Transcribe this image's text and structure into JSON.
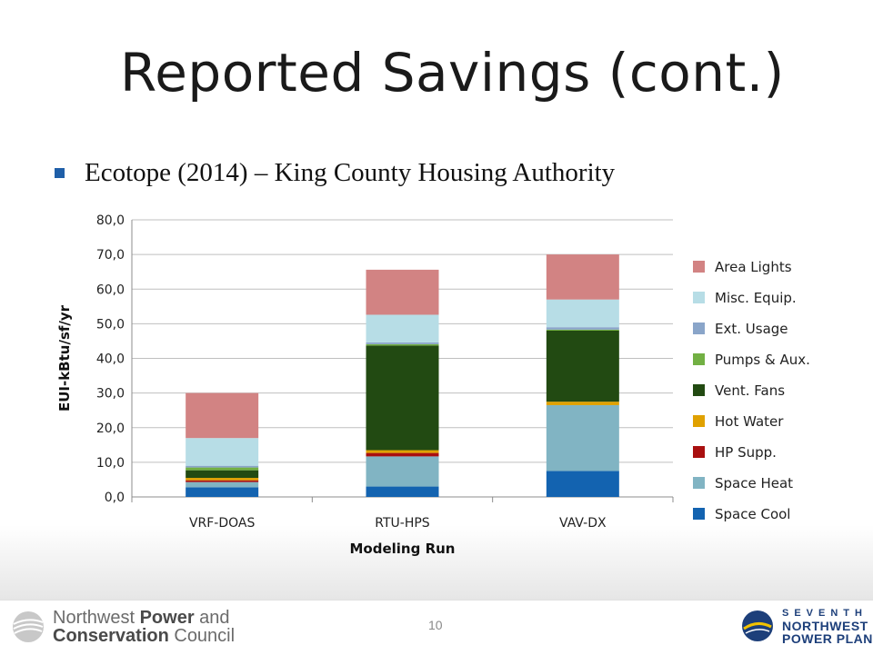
{
  "slide": {
    "title": "Reported Savings (cont.)",
    "bullet": "Ecotope (2014) – King County Housing Authority",
    "page_number": "10"
  },
  "footer": {
    "left_logo": {
      "line1_plain": "Northwest ",
      "line1_bold": "Power",
      "line1_tail": " and",
      "line2_bold": "Conservation",
      "line2_tail": " Council"
    },
    "right_logo": {
      "line1": "SEVENTH",
      "line2": "NORTHWEST",
      "line3": "POWER PLAN"
    }
  },
  "colors": {
    "bullet": "#1f5fa8",
    "title": "#1a1a1a"
  },
  "chart_data": {
    "type": "bar",
    "stacked": true,
    "categories": [
      "VRF-DOAS",
      "RTU-HPS",
      "VAV-DX"
    ],
    "xlabel": "Modeling Run",
    "ylabel": "EUI-kBtu/sf/yr",
    "ylim": [
      0,
      80
    ],
    "yticks": [
      "0,0",
      "10,0",
      "20,0",
      "30,0",
      "40,0",
      "50,0",
      "60,0",
      "70,0",
      "80,0"
    ],
    "grid": true,
    "legend_position": "right",
    "series": [
      {
        "name": "Space Cool",
        "color": "#1363b0",
        "values": [
          2.8,
          3.0,
          7.5
        ]
      },
      {
        "name": "Space Heat",
        "color": "#81b4c3",
        "values": [
          1.5,
          8.7,
          19.0
        ]
      },
      {
        "name": "HP Supp.",
        "color": "#a90f0f",
        "values": [
          0.5,
          1.0,
          0.0
        ]
      },
      {
        "name": "Hot Water",
        "color": "#e0a100",
        "values": [
          0.7,
          0.8,
          1.0
        ]
      },
      {
        "name": "Vent. Fans",
        "color": "#224a12",
        "values": [
          2.2,
          30.2,
          20.5
        ]
      },
      {
        "name": "Pumps & Aux.",
        "color": "#72b043",
        "values": [
          0.8,
          0.4,
          0.3
        ]
      },
      {
        "name": "Ext. Usage",
        "color": "#8aa5c9",
        "values": [
          0.5,
          0.5,
          0.7
        ]
      },
      {
        "name": "Misc. Equip.",
        "color": "#b7dde6",
        "values": [
          8.0,
          8.0,
          8.0
        ]
      },
      {
        "name": "Area Lights",
        "color": "#d28383",
        "values": [
          13.0,
          13.0,
          13.0
        ]
      }
    ]
  }
}
